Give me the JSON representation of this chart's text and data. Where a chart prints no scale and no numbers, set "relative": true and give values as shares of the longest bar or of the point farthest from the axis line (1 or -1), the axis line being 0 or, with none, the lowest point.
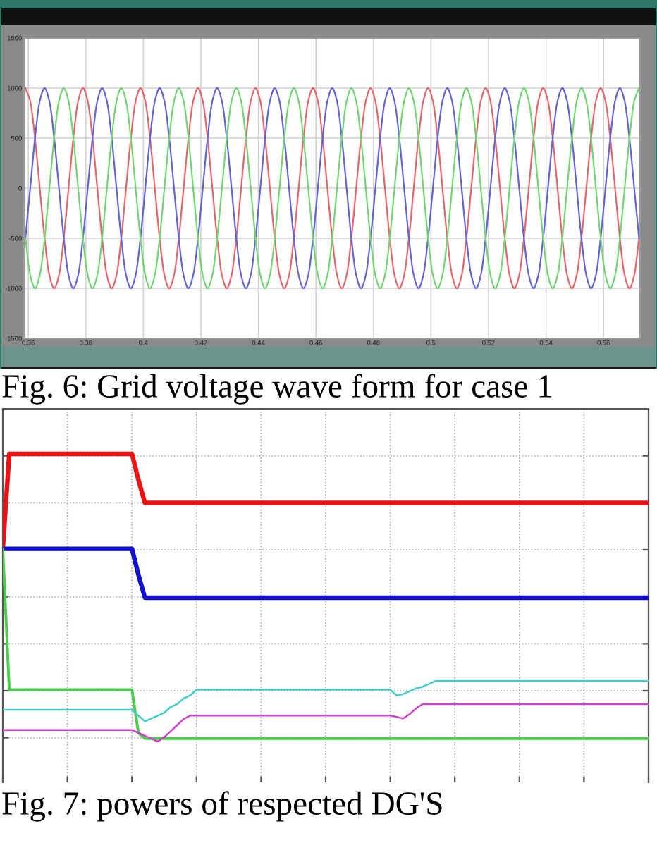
{
  "chart_data": [
    {
      "type": "line",
      "title": "Fig. 6: Grid voltage wave form for case 1",
      "xlim": [
        0.3585,
        0.5727
      ],
      "xticks": [
        0.36,
        0.38,
        0.4,
        0.42,
        0.44,
        0.46,
        0.48,
        0.5,
        0.52,
        0.54,
        0.56
      ],
      "ylim": [
        -1500,
        1500
      ],
      "yticks": [
        -1500,
        -1000,
        -500,
        0,
        500,
        1000,
        1500
      ],
      "grid": true,
      "x": [
        0.359,
        0.36067,
        0.36233,
        0.364,
        0.36567,
        0.36733,
        0.369,
        0.37067,
        0.37233,
        0.374,
        0.37567,
        0.37733,
        0.379,
        0.38067,
        0.38233,
        0.384,
        0.38567,
        0.38733,
        0.389,
        0.39067,
        0.39233,
        0.394,
        0.39567,
        0.39733,
        0.399,
        0.40067,
        0.40233,
        0.404,
        0.40567,
        0.40733,
        0.409,
        0.41067,
        0.41233,
        0.414,
        0.41567,
        0.41733,
        0.419,
        0.42067,
        0.42233,
        0.424,
        0.42567,
        0.42733,
        0.429,
        0.43067,
        0.43233,
        0.434,
        0.43567,
        0.43733,
        0.439,
        0.44067,
        0.44233,
        0.444,
        0.44567,
        0.44733,
        0.449,
        0.45067,
        0.45233,
        0.454,
        0.45567,
        0.45733,
        0.459,
        0.46067,
        0.46233,
        0.464,
        0.46567,
        0.46733,
        0.469,
        0.47067,
        0.47233,
        0.474,
        0.47567,
        0.47733,
        0.479,
        0.48067,
        0.48233,
        0.484,
        0.48567,
        0.48733,
        0.489,
        0.49067,
        0.49233,
        0.494,
        0.49567,
        0.49733,
        0.499,
        0.50067,
        0.50233,
        0.504,
        0.50567,
        0.50733,
        0.509,
        0.51067,
        0.51233,
        0.514,
        0.51567,
        0.51733,
        0.519,
        0.52067,
        0.52233,
        0.524,
        0.52567,
        0.52733,
        0.529,
        0.53067,
        0.53233,
        0.534,
        0.53567,
        0.53733,
        0.539,
        0.54067,
        0.54233,
        0.544,
        0.54567,
        0.54733,
        0.549,
        0.55067,
        0.55233,
        0.554,
        0.55567,
        0.55733,
        0.559,
        0.56067,
        0.56233,
        0.564,
        0.56567,
        0.56733,
        0.569,
        0.57067,
        0.57233
      ],
      "series": [
        {
          "color": "#e4676b",
          "values": [
            1000,
            870,
            500,
            0,
            -500,
            -870,
            -1000,
            -870,
            -500,
            0,
            500,
            870,
            1000,
            870,
            500,
            0,
            -500,
            -870,
            -1000,
            -870,
            -500,
            0,
            500,
            870,
            1000,
            870,
            500,
            0,
            -500,
            -870,
            -1000,
            -870,
            -500,
            0,
            500,
            870,
            1000,
            870,
            500,
            0,
            -500,
            -870,
            -1000,
            -870,
            -500,
            0,
            500,
            870,
            1000,
            870,
            500,
            0,
            -500,
            -870,
            -1000,
            -870,
            -500,
            0,
            500,
            870,
            1000,
            870,
            500,
            0,
            -500,
            -870,
            -1000,
            -870,
            -500,
            0,
            500,
            870,
            1000,
            870,
            500,
            0,
            -500,
            -870,
            -1000,
            -870,
            -500,
            0,
            500,
            870,
            1000,
            870,
            500,
            0,
            -500,
            -870,
            -1000,
            -870,
            -500,
            0,
            500,
            870,
            1000,
            870,
            500,
            0,
            -500,
            -870,
            -1000,
            -870,
            -500,
            0,
            500,
            870,
            1000,
            870,
            500,
            0,
            -500,
            -870,
            -1000,
            -870,
            -500,
            0,
            500,
            870,
            1000,
            870,
            500,
            0,
            -500,
            -870,
            -1000,
            -870,
            -500
          ]
        },
        {
          "color": "#6464d4",
          "values": [
            -500,
            0,
            500,
            870,
            1000,
            870,
            500,
            0,
            -500,
            -870,
            -1000,
            -870,
            -500,
            0,
            500,
            870,
            1000,
            870,
            500,
            0,
            -500,
            -870,
            -1000,
            -870,
            -500,
            0,
            500,
            870,
            1000,
            870,
            500,
            0,
            -500,
            -870,
            -1000,
            -870,
            -500,
            0,
            500,
            870,
            1000,
            870,
            500,
            0,
            -500,
            -870,
            -1000,
            -870,
            -500,
            0,
            500,
            870,
            1000,
            870,
            500,
            0,
            -500,
            -870,
            -1000,
            -870,
            -500,
            0,
            500,
            870,
            1000,
            870,
            500,
            0,
            -500,
            -870,
            -1000,
            -870,
            -500,
            0,
            500,
            870,
            1000,
            870,
            500,
            0,
            -500,
            -870,
            -1000,
            -870,
            -500,
            0,
            500,
            870,
            1000,
            870,
            500,
            0,
            -500,
            -870,
            -1000,
            -870,
            -500,
            0,
            500,
            870,
            1000,
            870,
            500,
            0,
            -500,
            -870,
            -1000,
            -870,
            -500,
            0,
            500,
            870,
            1000,
            870,
            500,
            0,
            -500,
            -870,
            -1000,
            -870,
            -500,
            0,
            500,
            870,
            1000,
            870,
            500,
            0,
            -500
          ]
        },
        {
          "color": "#72d472",
          "values": [
            -500,
            -870,
            -1000,
            -870,
            -500,
            0,
            500,
            870,
            1000,
            870,
            500,
            0,
            -500,
            -870,
            -1000,
            -870,
            -500,
            0,
            500,
            870,
            1000,
            870,
            500,
            0,
            -500,
            -870,
            -1000,
            -870,
            -500,
            0,
            500,
            870,
            1000,
            870,
            500,
            0,
            -500,
            -870,
            -1000,
            -870,
            -500,
            0,
            500,
            870,
            1000,
            870,
            500,
            0,
            -500,
            -870,
            -1000,
            -870,
            -500,
            0,
            500,
            870,
            1000,
            870,
            500,
            0,
            -500,
            -870,
            -1000,
            -870,
            -500,
            0,
            500,
            870,
            1000,
            870,
            500,
            0,
            -500,
            -870,
            -1000,
            -870,
            -500,
            0,
            500,
            870,
            1000,
            870,
            500,
            0,
            -500,
            -870,
            -1000,
            -870,
            -500,
            0,
            500,
            870,
            1000,
            870,
            500,
            0,
            -500,
            -870,
            -1000,
            -870,
            -500,
            0,
            500,
            870,
            1000,
            870,
            500,
            0,
            -500,
            -870,
            -1000,
            -870,
            -500,
            0,
            500,
            870,
            1000,
            870,
            500,
            0,
            -500,
            -870,
            -1000,
            -870,
            -500,
            0,
            500,
            870,
            1000
          ]
        }
      ]
    },
    {
      "type": "line",
      "title": "Fig. 7: powers of respected DG'S",
      "relative": true,
      "grid": true,
      "categories": [
        null,
        null,
        null,
        null,
        null,
        null,
        null,
        null,
        null,
        null,
        null,
        null,
        null,
        null,
        null,
        null,
        null,
        null,
        null,
        null,
        null,
        null,
        null,
        null,
        null,
        null,
        null,
        null,
        null,
        null,
        null,
        null,
        null,
        null,
        null,
        null,
        null,
        null,
        null,
        null,
        null,
        null,
        null,
        null,
        null,
        null,
        null,
        null,
        null,
        null,
        null,
        null,
        null,
        null,
        null,
        null,
        null,
        null,
        null,
        null,
        null,
        null,
        null,
        null,
        null,
        null,
        null,
        null,
        null,
        null,
        null,
        null,
        null,
        null,
        null,
        null,
        null,
        null,
        null,
        null,
        null,
        null,
        null,
        null,
        null,
        null,
        null,
        null,
        null,
        null,
        null,
        null,
        null,
        null,
        null,
        null,
        null,
        null,
        null,
        null,
        null
      ],
      "series": [
        {
          "color": "#ee1111",
          "values": [
            0.67,
            1,
            1,
            1,
            1,
            1,
            1,
            1,
            1,
            1,
            1,
            1,
            1,
            1,
            1,
            1,
            1,
            1,
            1,
            1,
            1,
            0.91,
            0.83,
            0.83,
            0.83,
            0.83,
            0.83,
            0.83,
            0.83,
            0.83,
            0.83,
            0.83,
            0.83,
            0.83,
            0.83,
            0.83,
            0.83,
            0.83,
            0.83,
            0.83,
            0.83,
            0.83,
            0.83,
            0.83,
            0.83,
            0.83,
            0.83,
            0.83,
            0.83,
            0.83,
            0.83,
            0.83,
            0.83,
            0.83,
            0.83,
            0.83,
            0.83,
            0.83,
            0.83,
            0.83,
            0.83,
            0.83,
            0.83,
            0.83,
            0.83,
            0.83,
            0.83,
            0.83,
            0.83,
            0.83,
            0.83,
            0.83,
            0.83,
            0.83,
            0.83,
            0.83,
            0.83,
            0.83,
            0.83,
            0.83,
            0.83,
            0.83,
            0.83,
            0.83,
            0.83,
            0.83,
            0.83,
            0.83,
            0.83,
            0.83,
            0.83,
            0.83,
            0.83,
            0.83,
            0.83,
            0.83,
            0.83,
            0.83,
            0.83,
            0.83,
            0.83
          ]
        },
        {
          "color": "#1010cc",
          "values": [
            0.67,
            0.67,
            0.67,
            0.67,
            0.67,
            0.67,
            0.67,
            0.67,
            0.67,
            0.67,
            0.67,
            0.67,
            0.67,
            0.67,
            0.67,
            0.67,
            0.67,
            0.67,
            0.67,
            0.67,
            0.67,
            0.58,
            0.5,
            0.5,
            0.5,
            0.5,
            0.5,
            0.5,
            0.5,
            0.5,
            0.5,
            0.5,
            0.5,
            0.5,
            0.5,
            0.5,
            0.5,
            0.5,
            0.5,
            0.5,
            0.5,
            0.5,
            0.5,
            0.5,
            0.5,
            0.5,
            0.5,
            0.5,
            0.5,
            0.5,
            0.5,
            0.5,
            0.5,
            0.5,
            0.5,
            0.5,
            0.5,
            0.5,
            0.5,
            0.5,
            0.5,
            0.5,
            0.5,
            0.5,
            0.5,
            0.5,
            0.5,
            0.5,
            0.5,
            0.5,
            0.5,
            0.5,
            0.5,
            0.5,
            0.5,
            0.5,
            0.5,
            0.5,
            0.5,
            0.5,
            0.5,
            0.5,
            0.5,
            0.5,
            0.5,
            0.5,
            0.5,
            0.5,
            0.5,
            0.5,
            0.5,
            0.5,
            0.5,
            0.5,
            0.5,
            0.5,
            0.5,
            0.5,
            0.5,
            0.5,
            0.5
          ]
        },
        {
          "color": "#4ccc4c",
          "values": [
            0.67,
            0.18,
            0.18,
            0.18,
            0.18,
            0.18,
            0.18,
            0.18,
            0.18,
            0.18,
            0.18,
            0.18,
            0.18,
            0.18,
            0.18,
            0.18,
            0.18,
            0.18,
            0.18,
            0.18,
            0.18,
            0.03,
            0.01,
            0.01,
            0.01,
            0.01,
            0.01,
            0.01,
            0.01,
            0.01,
            0.01,
            0.01,
            0.01,
            0.01,
            0.01,
            0.01,
            0.01,
            0.01,
            0.01,
            0.01,
            0.01,
            0.01,
            0.01,
            0.01,
            0.01,
            0.01,
            0.01,
            0.01,
            0.01,
            0.01,
            0.01,
            0.01,
            0.01,
            0.01,
            0.01,
            0.01,
            0.01,
            0.01,
            0.01,
            0.01,
            0.01,
            0.01,
            0.01,
            0.01,
            0.01,
            0.01,
            0.01,
            0.01,
            0.01,
            0.01,
            0.01,
            0.01,
            0.01,
            0.01,
            0.01,
            0.01,
            0.01,
            0.01,
            0.01,
            0.01,
            0.01,
            0.01,
            0.01,
            0.01,
            0.01,
            0.01,
            0.01,
            0.01,
            0.01,
            0.01,
            0.01,
            0.01,
            0.01,
            0.01,
            0.01,
            0.01,
            0.01,
            0.01,
            0.01,
            0.01,
            0.01
          ]
        },
        {
          "color": "#44cccc",
          "values": [
            0.11,
            0.11,
            0.11,
            0.11,
            0.11,
            0.11,
            0.11,
            0.11,
            0.11,
            0.11,
            0.11,
            0.11,
            0.11,
            0.11,
            0.11,
            0.11,
            0.11,
            0.11,
            0.11,
            0.11,
            0.11,
            0.09,
            0.07,
            0.08,
            0.09,
            0.1,
            0.12,
            0.13,
            0.15,
            0.16,
            0.18,
            0.18,
            0.18,
            0.18,
            0.18,
            0.18,
            0.18,
            0.18,
            0.18,
            0.18,
            0.18,
            0.18,
            0.18,
            0.18,
            0.18,
            0.18,
            0.18,
            0.18,
            0.18,
            0.18,
            0.18,
            0.18,
            0.18,
            0.18,
            0.18,
            0.18,
            0.18,
            0.18,
            0.18,
            0.18,
            0.18,
            0.16,
            0.165,
            0.175,
            0.185,
            0.19,
            0.2,
            0.21,
            0.21,
            0.21,
            0.21,
            0.21,
            0.21,
            0.21,
            0.21,
            0.21,
            0.21,
            0.21,
            0.21,
            0.21,
            0.21,
            0.21,
            0.21,
            0.21,
            0.21,
            0.21,
            0.21,
            0.21,
            0.21,
            0.21,
            0.21,
            0.21,
            0.21,
            0.21,
            0.21,
            0.21,
            0.21,
            0.21,
            0.21,
            0.21,
            0.21
          ]
        },
        {
          "color": "#cc44cc",
          "values": [
            0.04,
            0.04,
            0.04,
            0.04,
            0.04,
            0.04,
            0.04,
            0.04,
            0.04,
            0.04,
            0.04,
            0.04,
            0.04,
            0.04,
            0.04,
            0.04,
            0.04,
            0.04,
            0.04,
            0.04,
            0.04,
            0.03,
            0.02,
            0.01,
            0,
            0.015,
            0.036,
            0.057,
            0.078,
            0.09,
            0.09,
            0.09,
            0.09,
            0.09,
            0.09,
            0.09,
            0.09,
            0.09,
            0.09,
            0.09,
            0.09,
            0.09,
            0.09,
            0.09,
            0.09,
            0.09,
            0.09,
            0.09,
            0.09,
            0.09,
            0.09,
            0.09,
            0.09,
            0.09,
            0.09,
            0.09,
            0.09,
            0.09,
            0.09,
            0.09,
            0.09,
            0.085,
            0.08,
            0.095,
            0.115,
            0.13,
            0.13,
            0.13,
            0.13,
            0.13,
            0.13,
            0.13,
            0.13,
            0.13,
            0.13,
            0.13,
            0.13,
            0.13,
            0.13,
            0.13,
            0.13,
            0.13,
            0.13,
            0.13,
            0.13,
            0.13,
            0.13,
            0.13,
            0.13,
            0.13,
            0.13,
            0.13,
            0.13,
            0.13,
            0.13,
            0.13,
            0.13,
            0.13,
            0.13,
            0.13,
            0.13
          ]
        }
      ]
    }
  ]
}
